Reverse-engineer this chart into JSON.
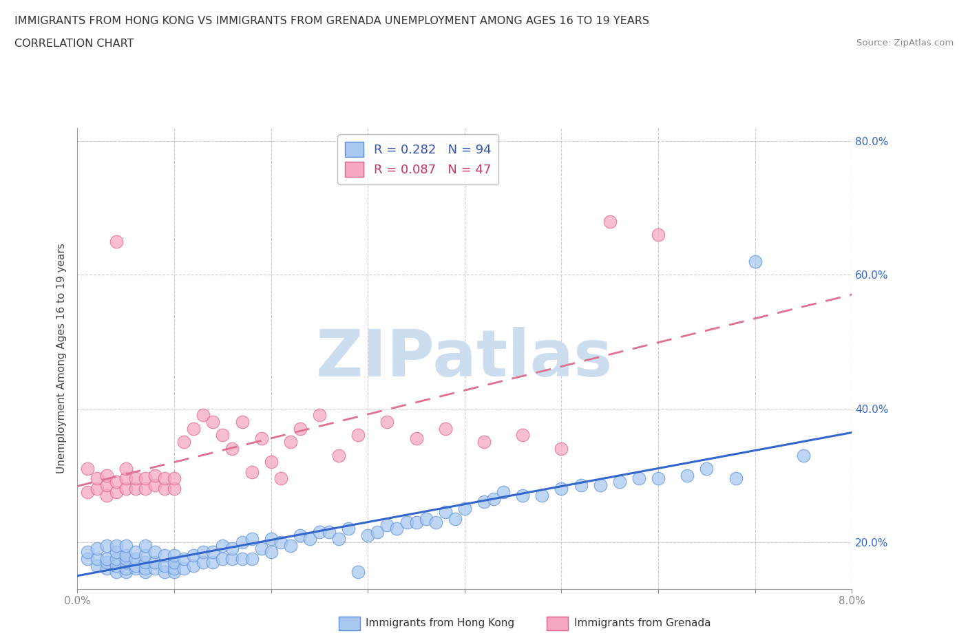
{
  "title_line1": "IMMIGRANTS FROM HONG KONG VS IMMIGRANTS FROM GRENADA UNEMPLOYMENT AMONG AGES 16 TO 19 YEARS",
  "title_line2": "CORRELATION CHART",
  "source_text": "Source: ZipAtlas.com",
  "ylabel": "Unemployment Among Ages 16 to 19 years",
  "xlim": [
    0.0,
    0.08
  ],
  "ylim": [
    0.13,
    0.82
  ],
  "xticks": [
    0.0,
    0.01,
    0.02,
    0.03,
    0.04,
    0.05,
    0.06,
    0.07,
    0.08
  ],
  "yticks_right": [
    0.2,
    0.4,
    0.6,
    0.8
  ],
  "ytick_labels_right": [
    "20.0%",
    "40.0%",
    "60.0%",
    "80.0%"
  ],
  "hk_color": "#a8c8f0",
  "grenada_color": "#f5a8c0",
  "hk_edge_color": "#5b8dd9",
  "grenada_edge_color": "#e06090",
  "hk_line_color": "#3366cc",
  "grenada_line_color": "#e07090",
  "R_hk": 0.282,
  "N_hk": 94,
  "R_grenada": 0.087,
  "N_grenada": 47,
  "legend_text_color_hk": "#3355bb",
  "legend_text_color_gr": "#cc3366",
  "watermark": "ZIPatlas",
  "watermark_color": "#ccddef",
  "background_color": "#ffffff",
  "grid_color": "#cccccc",
  "hk_x": [
    0.001,
    0.001,
    0.002,
    0.002,
    0.002,
    0.003,
    0.003,
    0.003,
    0.003,
    0.004,
    0.004,
    0.004,
    0.004,
    0.004,
    0.005,
    0.005,
    0.005,
    0.005,
    0.005,
    0.005,
    0.006,
    0.006,
    0.006,
    0.006,
    0.007,
    0.007,
    0.007,
    0.007,
    0.007,
    0.008,
    0.008,
    0.008,
    0.009,
    0.009,
    0.009,
    0.01,
    0.01,
    0.01,
    0.01,
    0.011,
    0.011,
    0.012,
    0.012,
    0.013,
    0.013,
    0.014,
    0.014,
    0.015,
    0.015,
    0.016,
    0.016,
    0.017,
    0.017,
    0.018,
    0.018,
    0.019,
    0.02,
    0.02,
    0.021,
    0.022,
    0.023,
    0.024,
    0.025,
    0.026,
    0.027,
    0.028,
    0.029,
    0.03,
    0.031,
    0.032,
    0.033,
    0.034,
    0.035,
    0.036,
    0.037,
    0.038,
    0.039,
    0.04,
    0.042,
    0.043,
    0.044,
    0.046,
    0.048,
    0.05,
    0.052,
    0.054,
    0.056,
    0.058,
    0.06,
    0.063,
    0.065,
    0.068,
    0.07,
    0.075
  ],
  "hk_y": [
    0.175,
    0.185,
    0.165,
    0.175,
    0.19,
    0.16,
    0.17,
    0.175,
    0.195,
    0.155,
    0.165,
    0.175,
    0.185,
    0.195,
    0.155,
    0.16,
    0.17,
    0.175,
    0.18,
    0.195,
    0.16,
    0.165,
    0.175,
    0.185,
    0.155,
    0.16,
    0.17,
    0.18,
    0.195,
    0.16,
    0.17,
    0.185,
    0.155,
    0.165,
    0.18,
    0.155,
    0.16,
    0.17,
    0.18,
    0.16,
    0.175,
    0.165,
    0.18,
    0.17,
    0.185,
    0.17,
    0.185,
    0.175,
    0.195,
    0.175,
    0.19,
    0.175,
    0.2,
    0.175,
    0.205,
    0.19,
    0.185,
    0.205,
    0.2,
    0.195,
    0.21,
    0.205,
    0.215,
    0.215,
    0.205,
    0.22,
    0.155,
    0.21,
    0.215,
    0.225,
    0.22,
    0.23,
    0.23,
    0.235,
    0.23,
    0.245,
    0.235,
    0.25,
    0.26,
    0.265,
    0.275,
    0.27,
    0.27,
    0.28,
    0.285,
    0.285,
    0.29,
    0.295,
    0.295,
    0.3,
    0.31,
    0.295,
    0.62,
    0.33
  ],
  "grenada_x": [
    0.001,
    0.001,
    0.002,
    0.002,
    0.003,
    0.003,
    0.003,
    0.004,
    0.004,
    0.004,
    0.005,
    0.005,
    0.005,
    0.006,
    0.006,
    0.007,
    0.007,
    0.008,
    0.008,
    0.009,
    0.009,
    0.01,
    0.01,
    0.011,
    0.012,
    0.013,
    0.014,
    0.015,
    0.016,
    0.017,
    0.018,
    0.019,
    0.02,
    0.021,
    0.022,
    0.023,
    0.025,
    0.027,
    0.029,
    0.032,
    0.035,
    0.038,
    0.042,
    0.046,
    0.05,
    0.055,
    0.06
  ],
  "grenada_y": [
    0.275,
    0.31,
    0.28,
    0.295,
    0.27,
    0.285,
    0.3,
    0.275,
    0.29,
    0.65,
    0.28,
    0.295,
    0.31,
    0.28,
    0.295,
    0.28,
    0.295,
    0.285,
    0.3,
    0.28,
    0.295,
    0.28,
    0.295,
    0.35,
    0.37,
    0.39,
    0.38,
    0.36,
    0.34,
    0.38,
    0.305,
    0.355,
    0.32,
    0.295,
    0.35,
    0.37,
    0.39,
    0.33,
    0.36,
    0.38,
    0.355,
    0.37,
    0.35,
    0.36,
    0.34,
    0.68,
    0.66
  ]
}
